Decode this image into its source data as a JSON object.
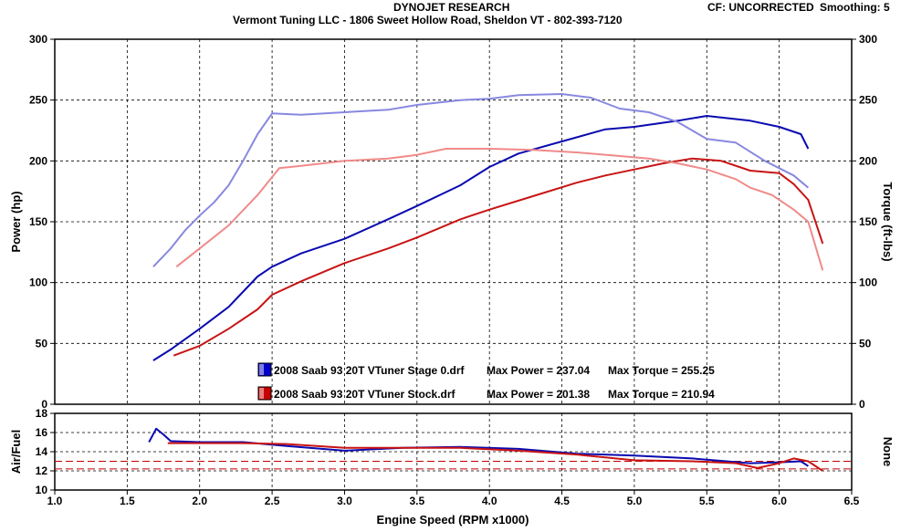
{
  "header": {
    "title": "DYNOJET RESEARCH",
    "subtitle": "Vermont Tuning LLC - 1806 Sweet Hollow Road, Sheldon VT - 802-393-7120",
    "cf": "CF: UNCORRECTED",
    "smoothing": "Smoothing: 5"
  },
  "chart_data": {
    "type": "line",
    "xlabel": "Engine Speed (RPM x1000)",
    "x_ticks": [
      "1.0",
      "1.5",
      "2.0",
      "2.5",
      "3.0",
      "3.5",
      "4.0",
      "4.5",
      "5.0",
      "5.5",
      "6.0",
      "6.5"
    ],
    "xlim": [
      1.0,
      6.5
    ],
    "main": {
      "ylabel_left": "Power (hp)",
      "ylabel_right": "Torque (ft-lbs)",
      "ylim": [
        0,
        300
      ],
      "y_ticks": [
        "0",
        "50",
        "100",
        "150",
        "200",
        "250",
        "300"
      ],
      "grid": true
    },
    "afr": {
      "ylabel_left": "Air/Fuel",
      "ylabel_right": "None",
      "ylim": [
        10,
        18
      ],
      "y_ticks": [
        "10",
        "12",
        "14",
        "16",
        "18"
      ],
      "reference_lines": [
        12.2,
        13.0
      ]
    },
    "legend": [
      {
        "run": "2008 Saab 93 20T VTuner Stage 0.drf",
        "power": "Max Power = 237.04",
        "torque": "Max Torque = 255.25",
        "color": "#0000c8"
      },
      {
        "run": "2008 Saab 93 20T VTuner Stock.drf",
        "power": "Max Power = 201.38",
        "torque": "Max Torque = 210.94",
        "color": "#c80000"
      }
    ],
    "series": [
      {
        "color": "#0a0ab0",
        "kind": "power",
        "x": [
          1.68,
          1.8,
          2.0,
          2.2,
          2.4,
          2.5,
          2.7,
          3.0,
          3.3,
          3.5,
          3.8,
          4.0,
          4.2,
          4.5,
          4.8,
          5.0,
          5.3,
          5.5,
          5.8,
          6.0,
          6.15,
          6.2
        ],
        "y": [
          36,
          45,
          62,
          80,
          105,
          113,
          124,
          136,
          152,
          163,
          180,
          195,
          206,
          216,
          226,
          228,
          233,
          237,
          233,
          228,
          222,
          210
        ]
      },
      {
        "color": "#8888e0",
        "kind": "torque",
        "x": [
          1.68,
          1.8,
          1.9,
          2.0,
          2.1,
          2.2,
          2.3,
          2.4,
          2.5,
          2.7,
          3.0,
          3.3,
          3.5,
          3.8,
          4.0,
          4.2,
          4.5,
          4.7,
          4.9,
          5.1,
          5.3,
          5.5,
          5.7,
          5.9,
          6.1,
          6.2
        ],
        "y": [
          113,
          128,
          143,
          155,
          166,
          180,
          200,
          222,
          239,
          238,
          240,
          242,
          246,
          250,
          251,
          254,
          255,
          252,
          243,
          240,
          232,
          218,
          215,
          200,
          188,
          178
        ]
      },
      {
        "color": "#c81414",
        "kind": "power",
        "x": [
          1.82,
          2.0,
          2.2,
          2.4,
          2.5,
          2.7,
          3.0,
          3.3,
          3.5,
          3.8,
          4.0,
          4.3,
          4.6,
          4.8,
          5.0,
          5.2,
          5.4,
          5.6,
          5.8,
          6.0,
          6.1,
          6.2,
          6.3
        ],
        "y": [
          40,
          48,
          62,
          78,
          90,
          101,
          116,
          128,
          137,
          152,
          160,
          171,
          182,
          188,
          193,
          198,
          202,
          200,
          192,
          190,
          181,
          168,
          132
        ]
      },
      {
        "color": "#f08a8a",
        "kind": "torque",
        "x": [
          1.84,
          2.0,
          2.2,
          2.4,
          2.55,
          2.7,
          3.0,
          3.3,
          3.5,
          3.7,
          4.0,
          4.3,
          4.6,
          4.9,
          5.1,
          5.3,
          5.5,
          5.7,
          5.8,
          5.95,
          6.1,
          6.2,
          6.3
        ],
        "y": [
          113,
          128,
          147,
          172,
          194,
          196,
          200,
          202,
          205,
          210,
          210,
          209,
          207,
          204,
          202,
          198,
          193,
          185,
          178,
          172,
          160,
          150,
          110
        ]
      },
      {
        "color": "#0a0ab0",
        "kind": "afr",
        "x": [
          1.65,
          1.7,
          1.75,
          1.8,
          2.0,
          2.3,
          2.6,
          3.0,
          3.4,
          3.8,
          4.2,
          4.6,
          5.0,
          5.4,
          5.8,
          6.0,
          6.15,
          6.2
        ],
        "y": [
          15.0,
          16.4,
          15.8,
          15.1,
          15.0,
          15.0,
          14.6,
          14.1,
          14.4,
          14.5,
          14.3,
          13.8,
          13.6,
          13.3,
          12.8,
          12.9,
          13.0,
          12.5
        ]
      },
      {
        "color": "#c81414",
        "kind": "afr",
        "x": [
          1.78,
          2.0,
          2.3,
          2.6,
          3.0,
          3.4,
          3.8,
          4.2,
          4.6,
          5.0,
          5.4,
          5.7,
          5.85,
          6.0,
          6.1,
          6.2,
          6.3
        ],
        "y": [
          14.9,
          14.9,
          14.9,
          14.8,
          14.4,
          14.4,
          14.4,
          14.1,
          13.7,
          13.1,
          13.0,
          12.8,
          12.3,
          12.8,
          13.3,
          13.0,
          12.0
        ]
      }
    ]
  }
}
